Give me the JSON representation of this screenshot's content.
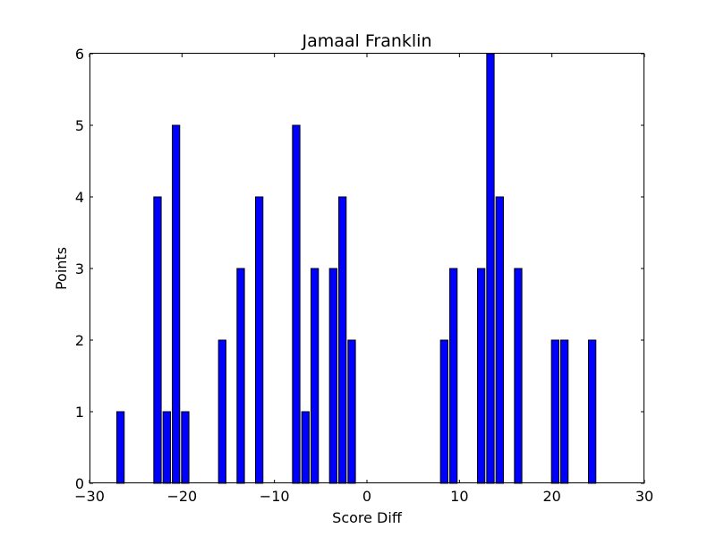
{
  "chart_data": {
    "type": "bar",
    "title": "Jamaal Franklin",
    "xlabel": "Score Diff",
    "ylabel": "Points",
    "xlim": [
      -30,
      30
    ],
    "ylim": [
      0,
      6
    ],
    "xticks": [
      -30,
      -20,
      -10,
      0,
      10,
      20,
      30
    ],
    "yticks": [
      0,
      1,
      2,
      3,
      4,
      5,
      6
    ],
    "grid": false,
    "bar_color": "#0000ff",
    "bar_edge_color": "#000000",
    "x": [
      -27,
      -23,
      -22,
      -21,
      -20,
      -16,
      -14,
      -12,
      -8,
      -7,
      -6,
      -4,
      -3,
      -2,
      8,
      9,
      12,
      13,
      14,
      16,
      20,
      21,
      24
    ],
    "values": [
      1,
      4,
      1,
      5,
      1,
      2,
      3,
      4,
      5,
      1,
      3,
      3,
      4,
      2,
      2,
      3,
      3,
      6,
      4,
      3,
      2,
      2,
      2
    ]
  }
}
